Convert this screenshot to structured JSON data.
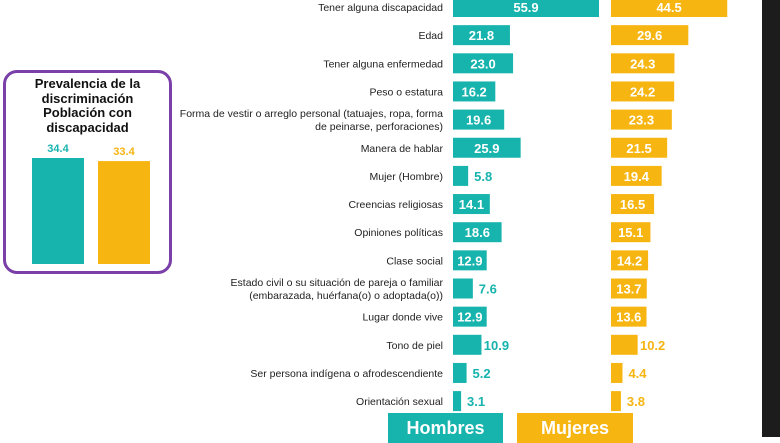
{
  "colors": {
    "hombres": "#17b3ad",
    "mujeres": "#f7b512",
    "inset_border": "#7a3fa8"
  },
  "legend": {
    "hombres": "Hombres",
    "mujeres": "Mujeres"
  },
  "inset": {
    "title_lines": [
      "Prevalencia de la",
      "discriminación",
      "Población con",
      "discapacidad"
    ]
  },
  "chart_data": [
    {
      "type": "bar",
      "orientation": "horizontal",
      "categories": [
        [
          "Tener alguna discapacidad"
        ],
        [
          "Edad"
        ],
        [
          "Tener alguna enfermedad"
        ],
        [
          "Peso o estatura"
        ],
        [
          "Forma de vestir o arreglo personal (tatuajes, ropa, forma",
          "de peinarse, perforaciones)"
        ],
        [
          "Manera de hablar"
        ],
        [
          "Mujer (Hombre)"
        ],
        [
          "Creencias religiosas"
        ],
        [
          "Opiniones políticas"
        ],
        [
          "Clase social"
        ],
        [
          "Estado civil o su situación de pareja o familiar",
          "(embarazada, huérfana(o) o adoptada(o))"
        ],
        [
          "Lugar donde vive"
        ],
        [
          "Tono de piel"
        ],
        [
          "Ser persona indígena o afrodescendiente"
        ],
        [
          "Orientación sexual"
        ]
      ],
      "series": [
        {
          "name": "Hombres",
          "color": "#17b3ad",
          "values": [
            55.9,
            21.8,
            23.0,
            16.2,
            19.6,
            25.9,
            5.8,
            14.1,
            18.6,
            12.9,
            7.6,
            12.9,
            10.9,
            5.2,
            3.1
          ],
          "labels": [
            "55.9",
            "21.8",
            "23.0",
            "16.2",
            "19.6",
            "25.9",
            "5.8",
            "14.1",
            "18.6",
            "12.9",
            "7.6",
            "12.9",
            "10.9",
            "5.2",
            "3.1"
          ]
        },
        {
          "name": "Mujeres",
          "color": "#f7b512",
          "values": [
            44.5,
            29.6,
            24.3,
            24.2,
            23.3,
            21.5,
            19.4,
            16.5,
            15.1,
            14.2,
            13.7,
            13.6,
            10.2,
            4.4,
            3.8
          ],
          "labels": [
            "44.5",
            "29.6",
            "24.3",
            "24.2",
            "23.3",
            "21.5",
            "19.4",
            "16.5",
            "15.1",
            "14.2",
            "13.7",
            "13.6",
            "10.2",
            "4.4",
            "3.8"
          ]
        }
      ]
    },
    {
      "type": "bar",
      "orientation": "vertical",
      "categories": [
        "Hombres",
        "Mujeres"
      ],
      "values": [
        34.4,
        33.4
      ],
      "labels": [
        "34.4",
        "33.4"
      ],
      "colors": [
        "#17b3ad",
        "#f7b512"
      ]
    }
  ]
}
